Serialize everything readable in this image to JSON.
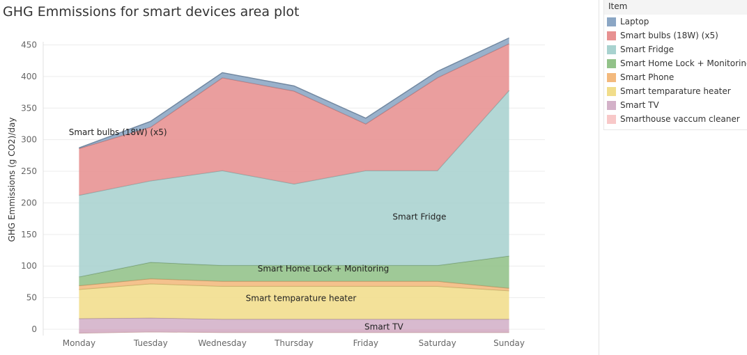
{
  "header": {
    "title": "GHG Emmissions for smart devices area plot"
  },
  "legend": {
    "title": "Item",
    "items": [
      {
        "label": "Laptop",
        "color": "#8ba6c4"
      },
      {
        "label": "Smart bulbs (18W) (x5)",
        "color": "#e79191"
      },
      {
        "label": "Smart Fridge",
        "color": "#a8d2cf"
      },
      {
        "label": "Smart Home Lock + Monitoring",
        "color": "#92c289"
      },
      {
        "label": "Smart Phone",
        "color": "#f3b97d"
      },
      {
        "label": "Smart temparature heater",
        "color": "#f1dd8b"
      },
      {
        "label": "Smart TV",
        "color": "#d3b1c8"
      },
      {
        "label": "Smarthouse  vaccum cleaner",
        "color": "#f8c8c8"
      }
    ]
  },
  "chart_data": {
    "type": "area",
    "stacked": true,
    "title": "GHG Emmissions for smart devices area plot",
    "xlabel": "",
    "ylabel": "GHG Emmissions (g CO2)/day",
    "ylim": [
      0,
      460
    ],
    "yticks": [
      0,
      50,
      100,
      150,
      200,
      250,
      300,
      350,
      400,
      450
    ],
    "grid": true,
    "legend_position": "right",
    "categories": [
      "Monday",
      "Tuesday",
      "Wednesday",
      "Thursday",
      "Friday",
      "Saturday",
      "Sunday"
    ],
    "series": [
      {
        "name": "Smarthouse  vaccum cleaner",
        "color": "#f8c8c8",
        "values": [
          -6,
          -4,
          -5,
          -5,
          -5,
          -5,
          -5
        ]
      },
      {
        "name": "Smart TV",
        "color": "#d3b1c8",
        "values": [
          23,
          22,
          21,
          21,
          21,
          21,
          21
        ]
      },
      {
        "name": "Smart temparature heater",
        "color": "#f1dd8b",
        "values": [
          46,
          54,
          52,
          52,
          52,
          52,
          45
        ]
      },
      {
        "name": "Smart Phone",
        "color": "#f3b97d",
        "values": [
          6,
          8,
          8,
          8,
          8,
          8,
          4
        ]
      },
      {
        "name": "Smart Home Lock + Monitoring",
        "color": "#92c289",
        "values": [
          14,
          26,
          25,
          25,
          25,
          25,
          51
        ]
      },
      {
        "name": "Smart Fridge",
        "color": "#a8d2cf",
        "values": [
          129,
          129,
          150,
          129,
          150,
          150,
          262
        ]
      },
      {
        "name": "Smart bulbs (18W) (x5)",
        "color": "#e79191",
        "values": [
          74,
          85,
          147,
          147,
          74,
          147,
          74
        ]
      },
      {
        "name": "Laptop",
        "color": "#8ba6c4",
        "values": [
          1,
          9,
          8,
          8,
          9,
          10,
          9
        ]
      }
    ],
    "annotations": [
      {
        "text": "Smart bulbs (18W) (x5)",
        "x": "Wednesday",
        "y": 312
      },
      {
        "text": "Smart Fridge",
        "x": "Friday",
        "y": 178
      },
      {
        "text": "Smart Home Lock + Monitoring",
        "x": "Thursday",
        "y": 96
      },
      {
        "text": "Smart temparature heater",
        "x": "Thursday",
        "y": 49
      },
      {
        "text": "Smart TV",
        "x": "Friday",
        "y": 4
      }
    ]
  }
}
